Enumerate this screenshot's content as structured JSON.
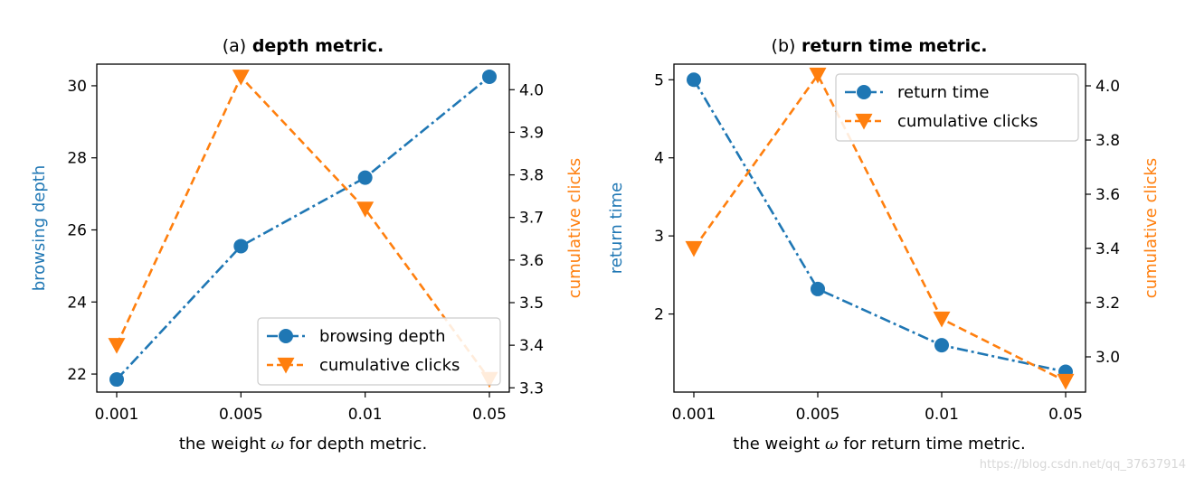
{
  "colors": {
    "blue": "#1f77b4",
    "orange": "#ff7f0e",
    "axis": "#000000",
    "background": "#ffffff"
  },
  "watermark": "https://blog.csdn.net/qq_37637914",
  "chart_data": [
    {
      "type": "line",
      "title_prefix": "(a)",
      "title": "depth metric.",
      "xlabel_pre": "the weight ",
      "xlabel_symbol": "ω",
      "xlabel_post": " for depth metric.",
      "categories": [
        "0.001",
        "0.005",
        "0.01",
        "0.05"
      ],
      "left_axis": {
        "label": "browsing depth",
        "ylim": [
          21.5,
          30.6
        ],
        "ticks": [
          22,
          24,
          26,
          28,
          30
        ],
        "tick_labels": [
          "22",
          "24",
          "26",
          "28",
          "30"
        ]
      },
      "right_axis": {
        "label": "cumulative clicks",
        "ylim": [
          3.29,
          4.06
        ],
        "ticks": [
          3.3,
          3.4,
          3.5,
          3.6,
          3.7,
          3.8,
          3.9,
          4.0
        ],
        "tick_labels": [
          "3.3",
          "3.4",
          "3.5",
          "3.6",
          "3.7",
          "3.8",
          "3.9",
          "4.0"
        ]
      },
      "series": [
        {
          "name": "browsing depth",
          "axis": "left",
          "values": [
            21.85,
            25.55,
            27.45,
            30.25
          ],
          "marker": "circle",
          "line": "dashdot",
          "color": "#1f77b4"
        },
        {
          "name": "cumulative clicks",
          "axis": "right",
          "values": [
            3.4,
            4.03,
            3.72,
            3.32
          ],
          "marker": "triangle-down",
          "line": "dashed",
          "color": "#ff7f0e"
        }
      ],
      "legend": {
        "placement": "lower-right",
        "entries": [
          "browsing depth",
          "cumulative clicks"
        ]
      }
    },
    {
      "type": "line",
      "title_prefix": "(b)",
      "title": "return time metric.",
      "xlabel_pre": "the weight ",
      "xlabel_symbol": "ω",
      "xlabel_post": " for return time metric.",
      "categories": [
        "0.001",
        "0.005",
        "0.01",
        "0.05"
      ],
      "left_axis": {
        "label": "return time",
        "ylim": [
          1.0,
          5.2
        ],
        "ticks": [
          2,
          3,
          4,
          5
        ],
        "tick_labels": [
          "2",
          "3",
          "4",
          "5"
        ]
      },
      "right_axis": {
        "label": "cumulative clicks",
        "ylim": [
          2.87,
          4.08
        ],
        "ticks": [
          3.0,
          3.2,
          3.4,
          3.6,
          3.8,
          4.0
        ],
        "tick_labels": [
          "3.0",
          "3.2",
          "3.4",
          "3.6",
          "3.8",
          "4.0"
        ]
      },
      "series": [
        {
          "name": "return time",
          "axis": "left",
          "values": [
            5.0,
            2.32,
            1.6,
            1.26
          ],
          "marker": "circle",
          "line": "dashdot",
          "color": "#1f77b4"
        },
        {
          "name": "cumulative clicks",
          "axis": "right",
          "values": [
            3.4,
            4.04,
            3.14,
            2.91
          ],
          "marker": "triangle-down",
          "line": "dashed",
          "color": "#ff7f0e"
        }
      ],
      "legend": {
        "placement": "upper-right",
        "entries": [
          "return time",
          "cumulative clicks"
        ]
      }
    }
  ]
}
